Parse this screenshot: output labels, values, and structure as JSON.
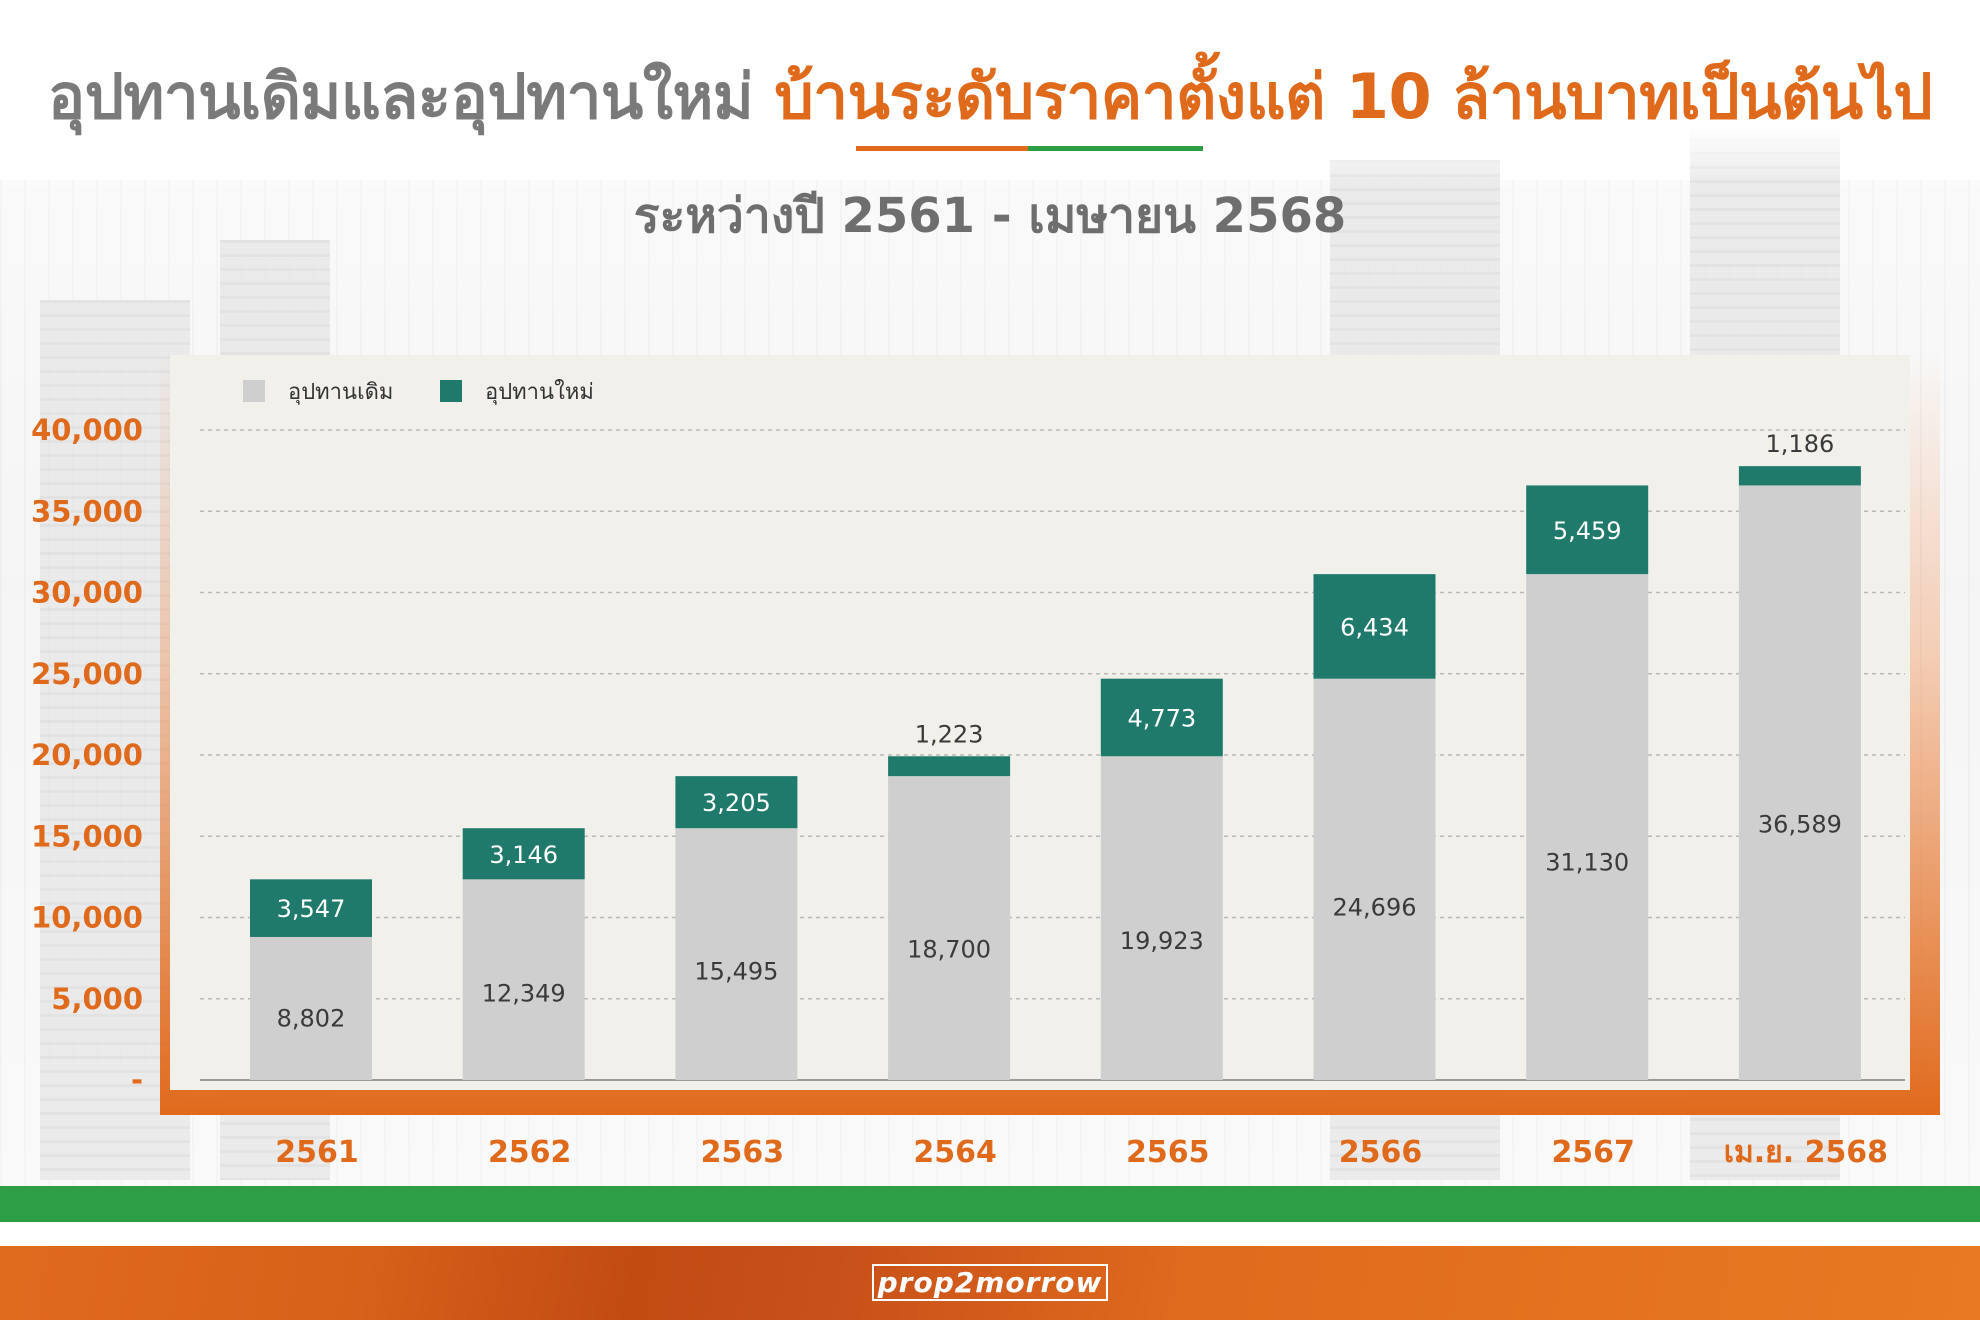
{
  "header": {
    "title_part1": "อุปทานเดิมและอุปทานใหม่",
    "title_part2": "บ้านระดับราคาตั้งแต่ 10 ล้านบาทเป็นต้นไป",
    "subtitle": "ระหว่างปี 2561 - เมษายน 2568"
  },
  "footer": {
    "logo_text": "prop2morrow"
  },
  "colors": {
    "existing": "#cfcfcf",
    "new": "#1f7a6c",
    "accent": "#e06a1c",
    "green": "#2e9e46"
  },
  "chart_data": {
    "type": "bar",
    "stacked": true,
    "categories": [
      "2561",
      "2562",
      "2563",
      "2564",
      "2565",
      "2566",
      "2567",
      "เม.ย. 2568"
    ],
    "series": [
      {
        "name": "อุปทานเดิม",
        "values": [
          8802,
          12349,
          15495,
          18700,
          19923,
          24696,
          31130,
          36589
        ]
      },
      {
        "name": "อุปทานใหม่",
        "values": [
          3547,
          3146,
          3205,
          1223,
          4773,
          6434,
          5459,
          1186
        ]
      }
    ],
    "data_labels_existing": [
      "8,802",
      "12,349",
      "15,495",
      "18,700",
      "19,923",
      "24,696",
      "31,130",
      "36,589"
    ],
    "data_labels_new": [
      "3,547",
      "3,146",
      "3,205",
      "1,223",
      "4,773",
      "6,434",
      "5,459",
      "1,186"
    ],
    "y_ticks": [
      "-",
      "5,000",
      "10,000",
      "15,000",
      "20,000",
      "25,000",
      "30,000",
      "35,000",
      "40,000"
    ],
    "ylim": [
      0,
      40000
    ],
    "grid": true,
    "legend_position": "top-left"
  }
}
